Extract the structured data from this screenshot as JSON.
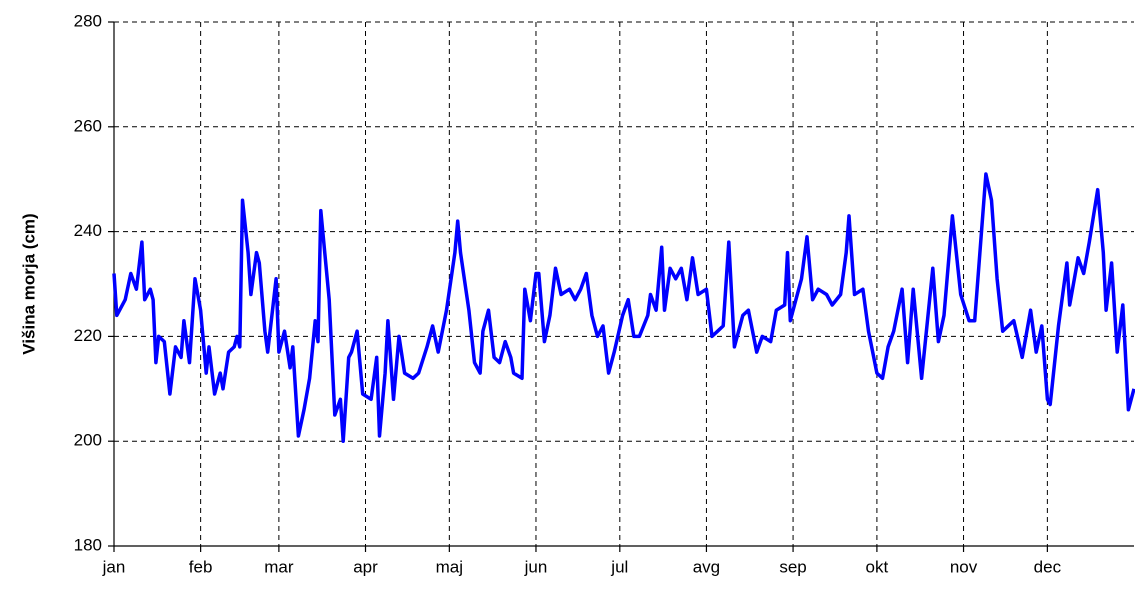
{
  "chart_data": {
    "type": "line",
    "ylabel": "Višina morja (cm)",
    "color": "#0000ff",
    "grid": true,
    "xlim": [
      0,
      365
    ],
    "xticks": [
      {
        "value": 0,
        "label": "jan"
      },
      {
        "value": 31,
        "label": "feb"
      },
      {
        "value": 59,
        "label": "mar"
      },
      {
        "value": 90,
        "label": "apr"
      },
      {
        "value": 120,
        "label": "maj"
      },
      {
        "value": 151,
        "label": "jun"
      },
      {
        "value": 181,
        "label": "jul"
      },
      {
        "value": 212,
        "label": "avg"
      },
      {
        "value": 243,
        "label": "sep"
      },
      {
        "value": 273,
        "label": "okt"
      },
      {
        "value": 304,
        "label": "nov"
      },
      {
        "value": 334,
        "label": "dec"
      }
    ],
    "ylim": [
      180,
      280
    ],
    "yticks": [
      180,
      200,
      220,
      240,
      260,
      280
    ],
    "x": [
      0,
      1,
      4,
      6,
      8,
      10,
      11,
      13,
      14,
      15,
      16,
      18,
      20,
      22,
      24,
      25,
      27,
      29,
      31,
      33,
      34,
      36,
      38,
      39,
      41,
      43,
      44,
      45,
      46,
      48,
      49,
      51,
      52,
      54,
      55,
      58,
      59,
      61,
      63,
      64,
      66,
      68,
      70,
      72,
      73,
      74,
      77,
      79,
      81,
      82,
      84,
      85,
      87,
      88,
      89,
      92,
      94,
      95,
      97,
      98,
      100,
      102,
      104,
      107,
      109,
      112,
      114,
      116,
      119,
      122,
      123,
      124,
      127,
      129,
      131,
      132,
      134,
      136,
      138,
      140,
      142,
      143,
      146,
      147,
      149,
      151,
      152,
      154,
      156,
      158,
      160,
      163,
      165,
      167,
      169,
      171,
      173,
      175,
      177,
      179,
      182,
      184,
      186,
      188,
      191,
      192,
      194,
      196,
      197,
      199,
      201,
      203,
      205,
      207,
      209,
      212,
      214,
      216,
      218,
      220,
      222,
      225,
      227,
      230,
      232,
      235,
      237,
      240,
      241,
      242,
      244,
      246,
      248,
      250,
      252,
      255,
      257,
      260,
      262,
      263,
      265,
      268,
      270,
      273,
      275,
      277,
      279,
      282,
      284,
      286,
      289,
      293,
      295,
      297,
      300,
      303,
      306,
      308,
      312,
      314,
      316,
      318,
      322,
      325,
      328,
      330,
      332,
      334,
      335,
      338,
      341,
      342,
      345,
      347,
      349,
      352,
      354,
      355,
      357,
      359,
      361,
      363,
      365
    ],
    "values": [
      232,
      224,
      227,
      232,
      229,
      238,
      227,
      229,
      227,
      215,
      220,
      219,
      209,
      218,
      216,
      223,
      215,
      231,
      225,
      213,
      218,
      209,
      213,
      210,
      217,
      218,
      220,
      218,
      246,
      236,
      228,
      236,
      234,
      221,
      217,
      231,
      217,
      221,
      214,
      218,
      201,
      206,
      212,
      223,
      219,
      244,
      227,
      205,
      208,
      200,
      216,
      217,
      221,
      215,
      209,
      208,
      216,
      201,
      213,
      223,
      208,
      220,
      213,
      212,
      213,
      218,
      222,
      217,
      225,
      236,
      242,
      236,
      225,
      215,
      213,
      221,
      225,
      216,
      215,
      219,
      216,
      213,
      212,
      229,
      223,
      232,
      232,
      219,
      224,
      233,
      228,
      229,
      227,
      229,
      232,
      224,
      220,
      222,
      213,
      217,
      224,
      227,
      220,
      220,
      224,
      228,
      225,
      237,
      225,
      233,
      231,
      233,
      227,
      235,
      228,
      229,
      220,
      221,
      222,
      238,
      218,
      224,
      225,
      217,
      220,
      219,
      225,
      226,
      236,
      223,
      227,
      231,
      239,
      227,
      229,
      228,
      226,
      228,
      236,
      243,
      228,
      229,
      221,
      213,
      212,
      218,
      221,
      229,
      215,
      229,
      212,
      233,
      219,
      224,
      243,
      228,
      223,
      223,
      251,
      246,
      231,
      221,
      223,
      216,
      225,
      217,
      222,
      208,
      207,
      222,
      234,
      226,
      235,
      232,
      238,
      248,
      236,
      225,
      234,
      217,
      226,
      206,
      210
    ]
  }
}
